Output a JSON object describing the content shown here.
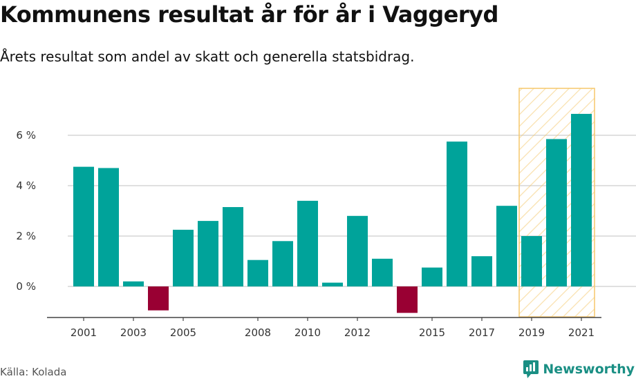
{
  "title": "Kommunens resultat år för år i Vaggeryd",
  "subtitle": "Årets resultat som andel av skatt och generella statsbidrag.",
  "source": "Källa: Kolada",
  "brand": "Newsworthy",
  "colors": {
    "positive": "#00a39a",
    "negative": "#990033",
    "highlight_stroke": "#f5c76a",
    "grid": "#d6d6d6",
    "brand": "#1a8f84"
  },
  "chart_data": {
    "type": "bar",
    "years": [
      2001,
      2002,
      2003,
      2004,
      2005,
      2006,
      2007,
      2008,
      2009,
      2010,
      2011,
      2012,
      2013,
      2014,
      2015,
      2016,
      2017,
      2018,
      2019,
      2020,
      2021
    ],
    "values": [
      4.75,
      4.7,
      0.2,
      -0.95,
      2.25,
      2.6,
      3.15,
      1.05,
      1.8,
      3.4,
      0.15,
      2.8,
      1.1,
      -1.05,
      0.75,
      5.75,
      1.2,
      3.2,
      2.0,
      5.85,
      6.85
    ],
    "x_tick_labels": [
      "2001",
      "2003",
      "2005",
      "2008",
      "2010",
      "2012",
      "2015",
      "2017",
      "2019",
      "2021"
    ],
    "x_tick_years": [
      2001,
      2003,
      2005,
      2008,
      2010,
      2012,
      2015,
      2017,
      2019,
      2021
    ],
    "y_ticks": [
      0,
      2,
      4,
      6
    ],
    "y_tick_labels": [
      "0 %",
      "2 %",
      "4 %",
      "6 %"
    ],
    "ylim": [
      -1.2,
      7.8
    ],
    "highlight_range": [
      2019,
      2021
    ],
    "grid": true
  }
}
